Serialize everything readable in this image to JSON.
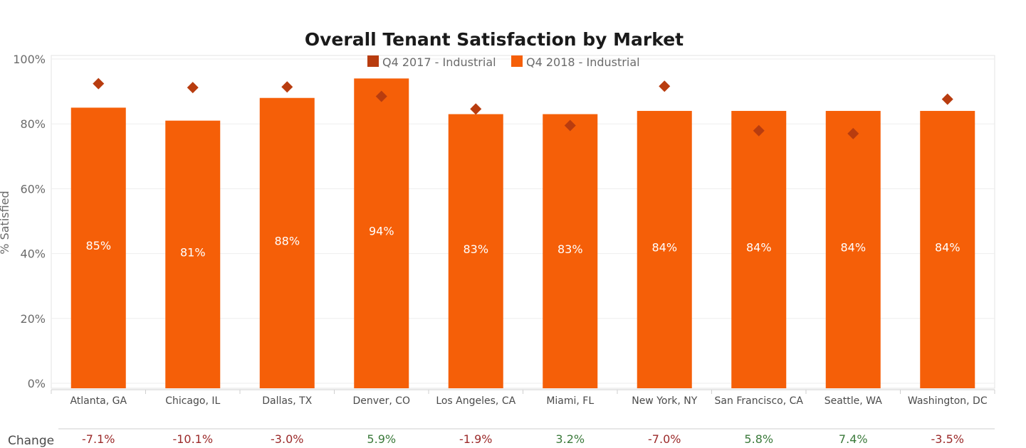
{
  "chart_data": {
    "type": "bar",
    "title": "Overall Tenant Satisfaction by Market",
    "ylabel": "% Satisfied",
    "ylim": [
      0,
      100
    ],
    "yticks": [
      "0%",
      "20%",
      "40%",
      "60%",
      "80%",
      "100%"
    ],
    "ytick_values": [
      0,
      20,
      40,
      60,
      80,
      100
    ],
    "grid": true,
    "legend_position": "top-center",
    "categories": [
      "Atlanta, GA",
      "Chicago, IL",
      "Dallas, TX",
      "Denver, CO",
      "Los Angeles, CA",
      "Miami, FL",
      "New York, NY",
      "San Francisco, CA",
      "Seattle, WA",
      "Washington, DC"
    ],
    "series": [
      {
        "name": "Q4 2017 - Industrial",
        "mark": "diamond",
        "color": "#b83c0f",
        "values": [
          92.4,
          91.2,
          91.4,
          88.5,
          84.6,
          79.5,
          91.6,
          77.9,
          77.0,
          87.6
        ]
      },
      {
        "name": "Q4 2018 - Industrial",
        "mark": "bar",
        "color": "#f55f08",
        "values": [
          85,
          81,
          88,
          94,
          83,
          83,
          84,
          84,
          84,
          84
        ],
        "labels": [
          "85%",
          "81%",
          "88%",
          "94%",
          "83%",
          "83%",
          "84%",
          "84%",
          "84%",
          "84%"
        ]
      }
    ],
    "change": {
      "label": "Change",
      "values": [
        "-7.1%",
        "-10.1%",
        "-3.0%",
        "5.9%",
        "-1.9%",
        "3.2%",
        "-7.0%",
        "5.8%",
        "7.4%",
        "-3.5%"
      ],
      "negative_color": "#9b2a2a",
      "positive_color": "#3b7a3b"
    }
  }
}
